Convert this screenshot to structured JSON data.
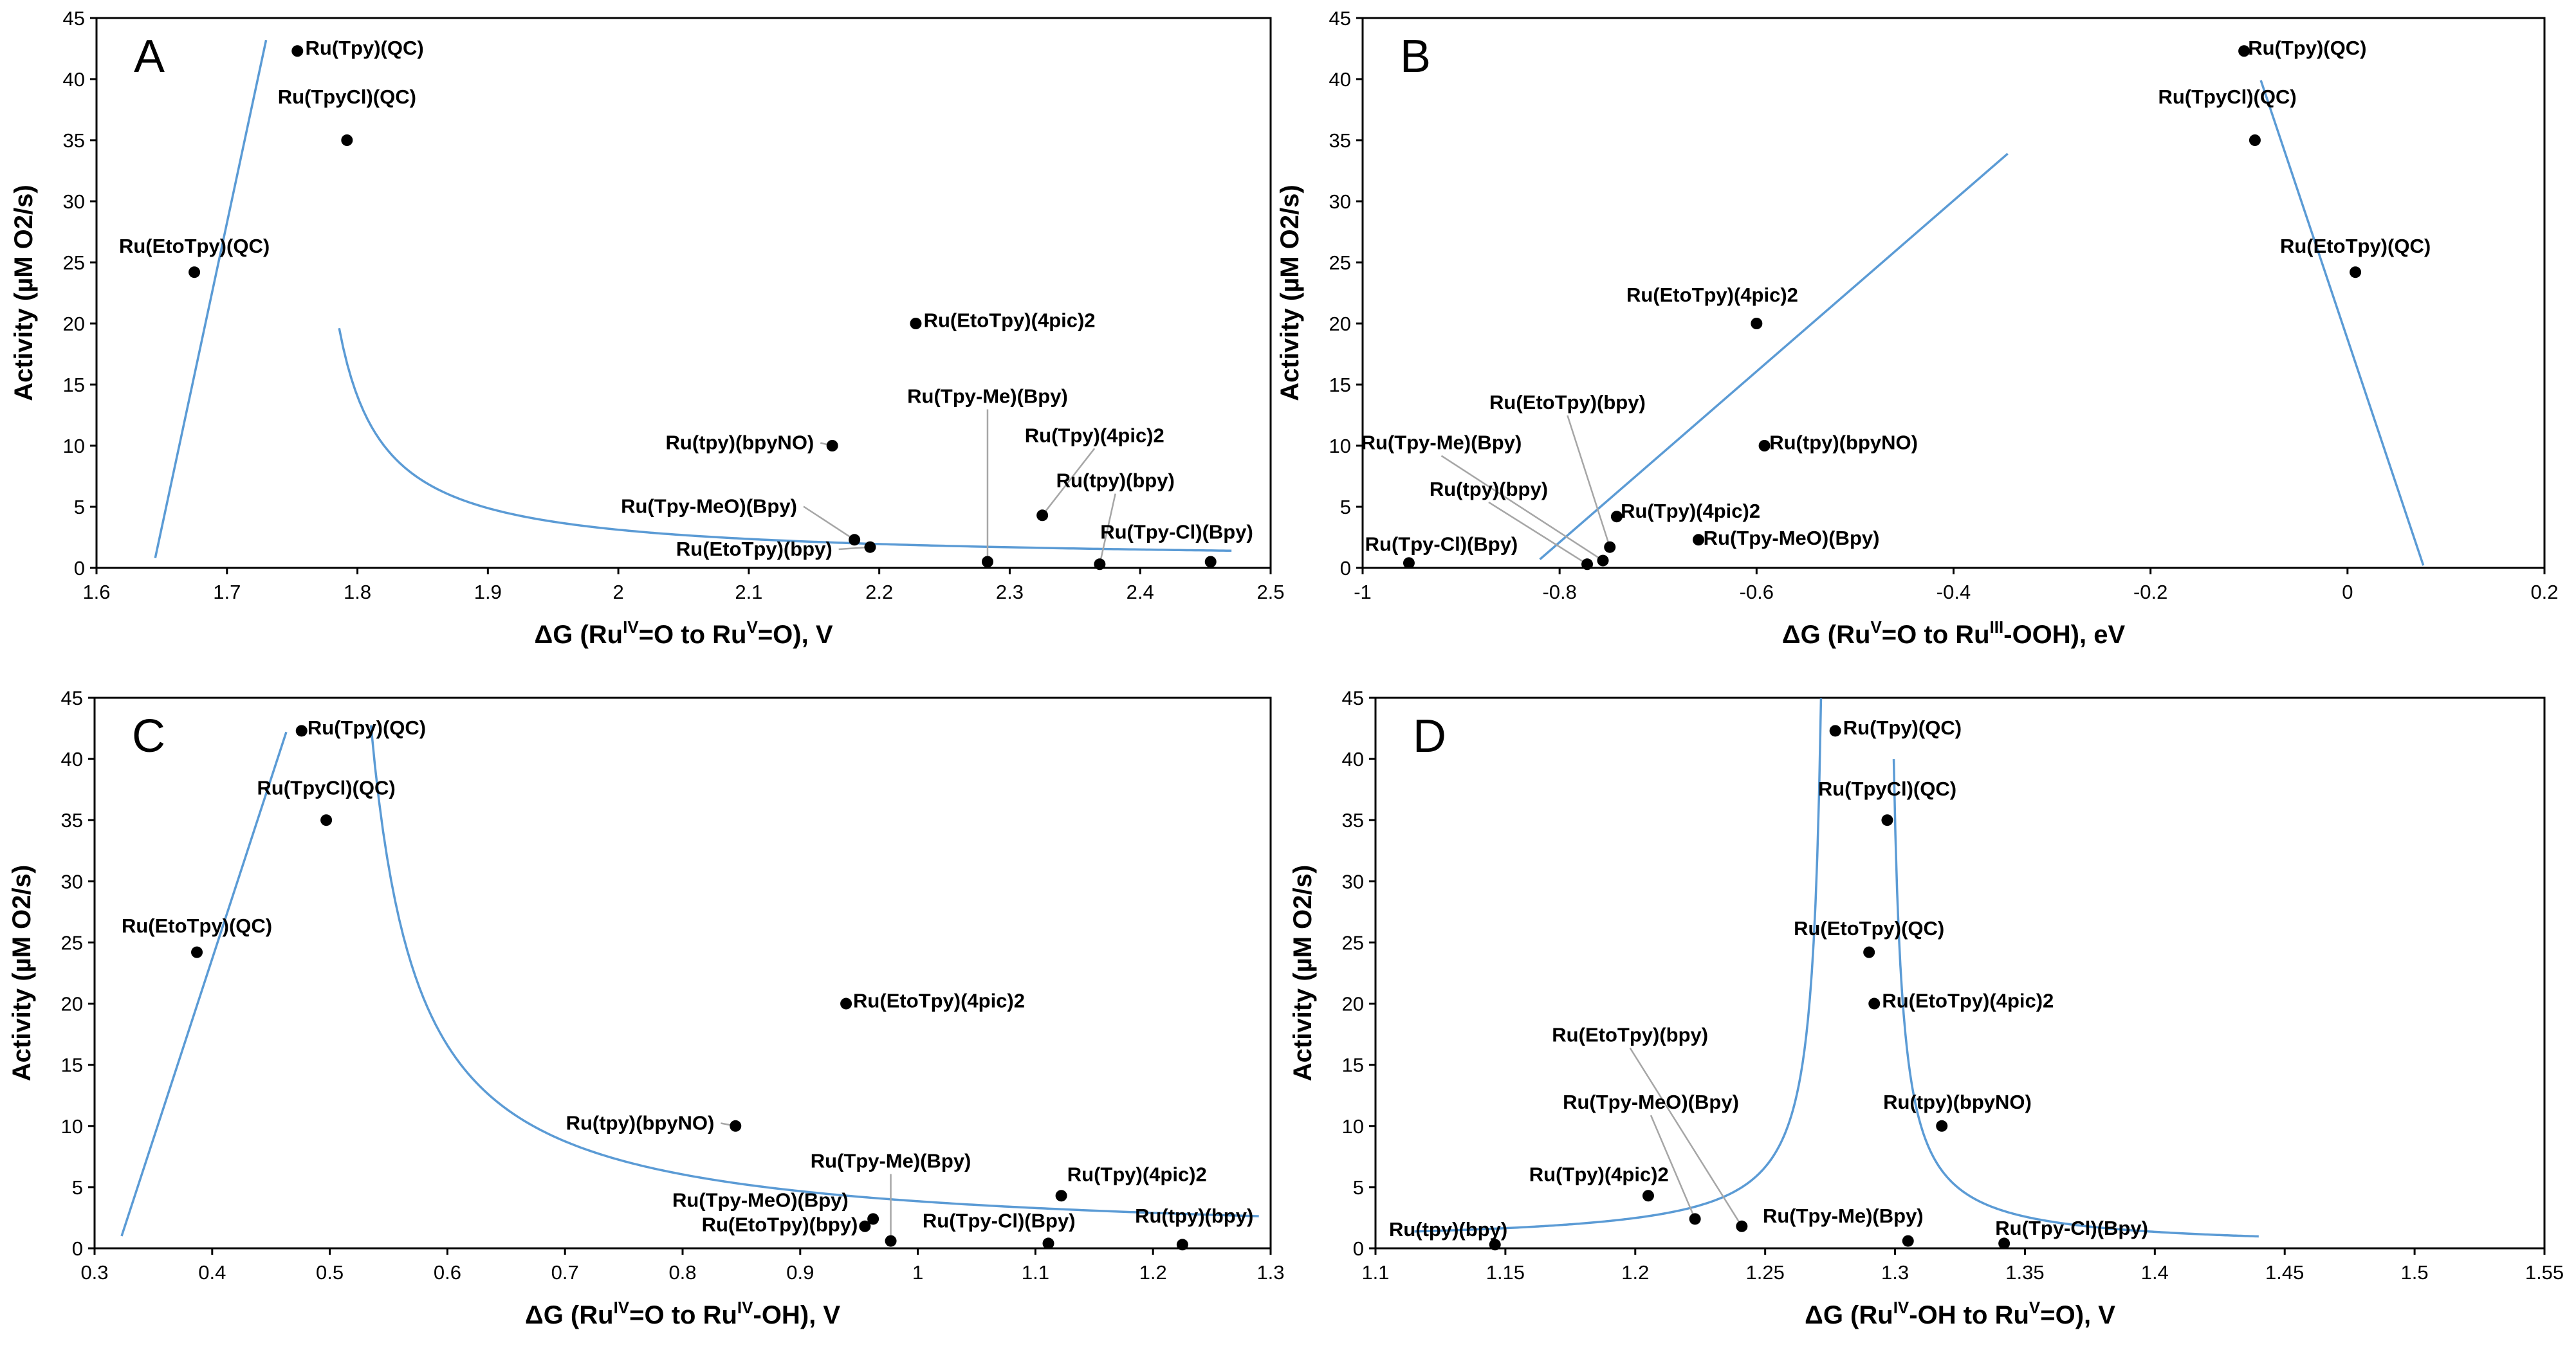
{
  "chart_data": [
    {
      "panel": "A",
      "type": "scatter",
      "title": "A",
      "xlabel": {
        "prefix": "ΔG (Ru",
        "sup1": "IV",
        "mid": "=O to Ru",
        "sup2": "V",
        "suffix": "=O), V"
      },
      "ylabel": "Activity (µM O2/s)",
      "xlim": [
        1.6,
        2.5
      ],
      "ylim": [
        0,
        45
      ],
      "xticks": [
        {
          "value": 1.6,
          "label": "1.6"
        },
        {
          "value": 1.7,
          "label": "1.7"
        },
        {
          "value": 1.8,
          "label": "1.8"
        },
        {
          "value": 1.9,
          "label": "1.9"
        },
        {
          "value": 2.0,
          "label": "2"
        },
        {
          "value": 2.1,
          "label": "2.1"
        },
        {
          "value": 2.2,
          "label": "2.2"
        },
        {
          "value": 2.3,
          "label": "2.3"
        },
        {
          "value": 2.4,
          "label": "2.4"
        },
        {
          "value": 2.5,
          "label": "2.5"
        }
      ],
      "yticks": [
        {
          "value": 0,
          "label": "0"
        },
        {
          "value": 5,
          "label": "5"
        },
        {
          "value": 10,
          "label": "10"
        },
        {
          "value": 15,
          "label": "15"
        },
        {
          "value": 20,
          "label": "20"
        },
        {
          "value": 25,
          "label": "25"
        },
        {
          "value": 30,
          "label": "30"
        },
        {
          "value": 35,
          "label": "35"
        },
        {
          "value": 40,
          "label": "40"
        },
        {
          "value": 45,
          "label": "45"
        }
      ],
      "points": [
        {
          "name": "Ru(Tpy)(QC)",
          "x": 1.754,
          "y": 42.3,
          "lx": 1.76,
          "ly": 42.0,
          "anchor": "start"
        },
        {
          "name": "Ru(TpyCl)(QC)",
          "x": 1.792,
          "y": 35.0,
          "lx": 1.792,
          "ly": 38.0,
          "anchor": "middle"
        },
        {
          "name": "Ru(EtoTpy)(QC)",
          "x": 1.675,
          "y": 24.2,
          "lx": 1.675,
          "ly": 25.8,
          "anchor": "middle"
        },
        {
          "name": "Ru(EtoTpy)(4pic)2",
          "x": 2.228,
          "y": 20.0,
          "lx": 2.234,
          "ly": 19.7,
          "anchor": "start"
        },
        {
          "name": "Ru(tpy)(bpyNO)",
          "x": 2.164,
          "y": 10.0,
          "lx": 2.15,
          "ly": 9.7,
          "anchor": "end",
          "leader": true
        },
        {
          "name": "Ru(Tpy-MeO)(Bpy)",
          "x": 2.181,
          "y": 2.3,
          "lx": 2.137,
          "ly": 4.5,
          "anchor": "end",
          "leader": true
        },
        {
          "name": "Ru(EtoTpy)(bpy)",
          "x": 2.193,
          "y": 1.7,
          "lx": 2.164,
          "ly": 1.0,
          "anchor": "end",
          "leader": true
        },
        {
          "name": "Ru(Tpy-Me)(Bpy)",
          "x": 2.283,
          "y": 0.5,
          "lx": 2.283,
          "ly": 13.5,
          "anchor": "middle",
          "leader": true
        },
        {
          "name": "Ru(Tpy)(4pic)2",
          "x": 2.325,
          "y": 4.3,
          "lx": 2.365,
          "ly": 10.3,
          "anchor": "middle",
          "leader": true
        },
        {
          "name": "Ru(tpy)(bpy)",
          "x": 2.369,
          "y": 0.3,
          "lx": 2.381,
          "ly": 6.6,
          "anchor": "middle",
          "leader": true
        },
        {
          "name": "Ru(Tpy-Cl)(Bpy)",
          "x": 2.454,
          "y": 0.5,
          "lx": 2.428,
          "ly": 2.4,
          "anchor": "middle"
        }
      ],
      "curves": [
        {
          "kind": "line",
          "pts": [
            [
              1.645,
              0.8
            ],
            [
              1.73,
              43.2
            ]
          ]
        },
        {
          "kind": "hyperbola",
          "xstart": 1.786,
          "xend": 2.47,
          "x0": 1.752,
          "a": 0.65,
          "c": 0.5
        }
      ]
    },
    {
      "panel": "B",
      "type": "scatter",
      "title": "B",
      "xlabel": {
        "prefix": "ΔG (Ru",
        "sup1": "V",
        "mid": "=O to Ru",
        "sup2": "III",
        "suffix": "-OOH), eV"
      },
      "ylabel": "Activity (µM O2/s)",
      "xlim": [
        -1,
        0.2
      ],
      "ylim": [
        0,
        45
      ],
      "xticks": [
        {
          "value": -1,
          "label": "-1"
        },
        {
          "value": -0.8,
          "label": "-0.8"
        },
        {
          "value": -0.6,
          "label": "-0.6"
        },
        {
          "value": -0.4,
          "label": "-0.4"
        },
        {
          "value": -0.2,
          "label": "-0.2"
        },
        {
          "value": 0,
          "label": "0"
        },
        {
          "value": 0.2,
          "label": "0.2"
        }
      ],
      "yticks": [
        {
          "value": 0,
          "label": "0"
        },
        {
          "value": 5,
          "label": "5"
        },
        {
          "value": 10,
          "label": "10"
        },
        {
          "value": 15,
          "label": "15"
        },
        {
          "value": 20,
          "label": "20"
        },
        {
          "value": 25,
          "label": "25"
        },
        {
          "value": 30,
          "label": "30"
        },
        {
          "value": 35,
          "label": "35"
        },
        {
          "value": 40,
          "label": "40"
        },
        {
          "value": 45,
          "label": "45"
        }
      ],
      "points": [
        {
          "name": "Ru(Tpy)(QC)",
          "x": -0.105,
          "y": 42.3,
          "lx": -0.101,
          "ly": 42.0,
          "anchor": "start"
        },
        {
          "name": "Ru(TpyCl)(QC)",
          "x": -0.094,
          "y": 35.0,
          "lx": -0.122,
          "ly": 38.0,
          "anchor": "middle"
        },
        {
          "name": "Ru(EtoTpy)(QC)",
          "x": 0.008,
          "y": 24.2,
          "lx": 0.008,
          "ly": 25.8,
          "anchor": "middle"
        },
        {
          "name": "Ru(EtoTpy)(4pic)2",
          "x": -0.6,
          "y": 20.0,
          "lx": -0.645,
          "ly": 21.8,
          "anchor": "middle"
        },
        {
          "name": "Ru(tpy)(bpyNO)",
          "x": -0.592,
          "y": 10.0,
          "lx": -0.587,
          "ly": 9.7,
          "anchor": "start"
        },
        {
          "name": "Ru(Tpy)(4pic)2",
          "x": -0.742,
          "y": 4.2,
          "lx": -0.738,
          "ly": 4.1,
          "anchor": "start"
        },
        {
          "name": "Ru(Tpy-MeO)(Bpy)",
          "x": -0.659,
          "y": 2.3,
          "lx": -0.654,
          "ly": 1.9,
          "anchor": "start"
        },
        {
          "name": "Ru(EtoTpy)(bpy)",
          "x": -0.749,
          "y": 1.7,
          "lx": -0.792,
          "ly": 13.0,
          "anchor": "middle",
          "leader": true
        },
        {
          "name": "Ru(Tpy-Me)(Bpy)",
          "x": -0.756,
          "y": 0.6,
          "lx": -0.92,
          "ly": 9.7,
          "anchor": "middle",
          "leader": true
        },
        {
          "name": "Ru(tpy)(bpy)",
          "x": -0.772,
          "y": 0.3,
          "lx": -0.872,
          "ly": 5.9,
          "anchor": "middle",
          "leader": true
        },
        {
          "name": "Ru(Tpy-Cl)(Bpy)",
          "x": -0.953,
          "y": 0.4,
          "lx": -0.92,
          "ly": 1.4,
          "anchor": "middle"
        }
      ],
      "curves": [
        {
          "kind": "line",
          "pts": [
            [
              -0.82,
              0.7
            ],
            [
              -0.345,
              33.9
            ]
          ]
        },
        {
          "kind": "line",
          "pts": [
            [
              -0.088,
              39.9
            ],
            [
              0.077,
              0.2
            ]
          ]
        }
      ]
    },
    {
      "panel": "C",
      "type": "scatter",
      "title": "C",
      "xlabel": {
        "prefix": "ΔG (Ru",
        "sup1": "IV",
        "mid": "=O to Ru",
        "sup2": "IV",
        "suffix": "-OH), V"
      },
      "ylabel": "Activity (µM O2/s)",
      "xlim": [
        0.3,
        1.3
      ],
      "ylim": [
        0,
        45
      ],
      "xticks": [
        {
          "value": 0.3,
          "label": "0.3"
        },
        {
          "value": 0.4,
          "label": "0.4"
        },
        {
          "value": 0.5,
          "label": "0.5"
        },
        {
          "value": 0.6,
          "label": "0.6"
        },
        {
          "value": 0.7,
          "label": "0.7"
        },
        {
          "value": 0.8,
          "label": "0.8"
        },
        {
          "value": 0.9,
          "label": "0.9"
        },
        {
          "value": 1.0,
          "label": "1"
        },
        {
          "value": 1.1,
          "label": "1.1"
        },
        {
          "value": 1.2,
          "label": "1.2"
        },
        {
          "value": 1.3,
          "label": "1.3"
        }
      ],
      "yticks": [
        {
          "value": 0,
          "label": "0"
        },
        {
          "value": 5,
          "label": "5"
        },
        {
          "value": 10,
          "label": "10"
        },
        {
          "value": 15,
          "label": "15"
        },
        {
          "value": 20,
          "label": "20"
        },
        {
          "value": 25,
          "label": "25"
        },
        {
          "value": 30,
          "label": "30"
        },
        {
          "value": 35,
          "label": "35"
        },
        {
          "value": 40,
          "label": "40"
        },
        {
          "value": 45,
          "label": "45"
        }
      ],
      "points": [
        {
          "name": "Ru(Tpy)(QC)",
          "x": 0.476,
          "y": 42.3,
          "lx": 0.481,
          "ly": 42.0,
          "anchor": "start"
        },
        {
          "name": "Ru(TpyCl)(QC)",
          "x": 0.497,
          "y": 35.0,
          "lx": 0.497,
          "ly": 37.1,
          "anchor": "middle"
        },
        {
          "name": "Ru(EtoTpy)(QC)",
          "x": 0.387,
          "y": 24.2,
          "lx": 0.387,
          "ly": 25.8,
          "anchor": "middle"
        },
        {
          "name": "Ru(EtoTpy)(4pic)2",
          "x": 0.939,
          "y": 20.0,
          "lx": 0.945,
          "ly": 19.7,
          "anchor": "start"
        },
        {
          "name": "Ru(tpy)(bpyNO)",
          "x": 0.845,
          "y": 10.0,
          "lx": 0.827,
          "ly": 9.7,
          "anchor": "end",
          "leader": true
        },
        {
          "name": "Ru(Tpy-Me)(Bpy)",
          "x": 0.977,
          "y": 0.6,
          "lx": 0.977,
          "ly": 6.6,
          "anchor": "middle",
          "leader": true
        },
        {
          "name": "Ru(Tpy-MeO)(Bpy)",
          "x": 0.962,
          "y": 2.4,
          "lx": 0.941,
          "ly": 3.4,
          "anchor": "end"
        },
        {
          "name": "Ru(EtoTpy)(bpy)",
          "x": 0.955,
          "y": 1.8,
          "lx": 0.949,
          "ly": 1.4,
          "anchor": "end"
        },
        {
          "name": "Ru(Tpy)(4pic)2",
          "x": 1.122,
          "y": 4.3,
          "lx": 1.127,
          "ly": 5.5,
          "anchor": "start"
        },
        {
          "name": "Ru(Tpy-Cl)(Bpy)",
          "x": 1.111,
          "y": 0.4,
          "lx": 1.069,
          "ly": 1.7,
          "anchor": "middle"
        },
        {
          "name": "Ru(tpy)(bpy)",
          "x": 1.225,
          "y": 0.3,
          "lx": 1.235,
          "ly": 2.1,
          "anchor": "middle"
        }
      ],
      "curves": [
        {
          "kind": "line",
          "pts": [
            [
              0.323,
              1.0
            ],
            [
              0.463,
              42.2
            ]
          ]
        },
        {
          "kind": "hyperbola",
          "xstart": 0.535,
          "xend": 1.29,
          "x0": 0.495,
          "a": 1.69,
          "c": 0.5
        }
      ]
    },
    {
      "panel": "D",
      "type": "scatter",
      "title": "D",
      "xlabel": {
        "prefix": "ΔG (Ru",
        "sup1": "IV",
        "mid": "-OH to Ru",
        "sup2": "V",
        "suffix": "=O), V"
      },
      "ylabel": "Activity (µM O2/s)",
      "xlim": [
        1.1,
        1.55
      ],
      "ylim": [
        0,
        45
      ],
      "xticks": [
        {
          "value": 1.1,
          "label": "1.1"
        },
        {
          "value": 1.15,
          "label": "1.15"
        },
        {
          "value": 1.2,
          "label": "1.2"
        },
        {
          "value": 1.25,
          "label": "1.25"
        },
        {
          "value": 1.3,
          "label": "1.3"
        },
        {
          "value": 1.35,
          "label": "1.35"
        },
        {
          "value": 1.4,
          "label": "1.4"
        },
        {
          "value": 1.45,
          "label": "1.45"
        },
        {
          "value": 1.5,
          "label": "1.5"
        },
        {
          "value": 1.55,
          "label": "1.55"
        }
      ],
      "yticks": [
        {
          "value": 0,
          "label": "0"
        },
        {
          "value": 5,
          "label": "5"
        },
        {
          "value": 10,
          "label": "10"
        },
        {
          "value": 15,
          "label": "15"
        },
        {
          "value": 20,
          "label": "20"
        },
        {
          "value": 25,
          "label": "25"
        },
        {
          "value": 30,
          "label": "30"
        },
        {
          "value": 35,
          "label": "35"
        },
        {
          "value": 40,
          "label": "40"
        },
        {
          "value": 45,
          "label": "45"
        }
      ],
      "points": [
        {
          "name": "Ru(Tpy)(QC)",
          "x": 1.277,
          "y": 42.3,
          "lx": 1.28,
          "ly": 42.0,
          "anchor": "start"
        },
        {
          "name": "Ru(TpyCl)(QC)",
          "x": 1.297,
          "y": 35.0,
          "lx": 1.297,
          "ly": 37.0,
          "anchor": "middle"
        },
        {
          "name": "Ru(EtoTpy)(QC)",
          "x": 1.29,
          "y": 24.2,
          "lx": 1.29,
          "ly": 25.6,
          "anchor": "middle"
        },
        {
          "name": "Ru(EtoTpy)(4pic)2",
          "x": 1.292,
          "y": 20.0,
          "lx": 1.295,
          "ly": 19.7,
          "anchor": "start"
        },
        {
          "name": "Ru(tpy)(bpyNO)",
          "x": 1.318,
          "y": 10.0,
          "lx": 1.324,
          "ly": 11.4,
          "anchor": "middle"
        },
        {
          "name": "Ru(EtoTpy)(bpy)",
          "x": 1.241,
          "y": 1.8,
          "lx": 1.198,
          "ly": 16.9,
          "anchor": "middle",
          "leader": true
        },
        {
          "name": "Ru(Tpy-MeO)(Bpy)",
          "x": 1.223,
          "y": 2.4,
          "lx": 1.206,
          "ly": 11.4,
          "anchor": "middle",
          "leader": true
        },
        {
          "name": "Ru(Tpy)(4pic)2",
          "x": 1.205,
          "y": 4.3,
          "lx": 1.186,
          "ly": 5.5,
          "anchor": "middle"
        },
        {
          "name": "Ru(Tpy-Me)(Bpy)",
          "x": 1.305,
          "y": 0.6,
          "lx": 1.28,
          "ly": 2.1,
          "anchor": "middle"
        },
        {
          "name": "Ru(Tpy-Cl)(Bpy)",
          "x": 1.342,
          "y": 0.4,
          "lx": 1.368,
          "ly": 1.1,
          "anchor": "middle"
        },
        {
          "name": "Ru(tpy)(bpy)",
          "x": 1.146,
          "y": 0.3,
          "lx": 1.128,
          "ly": 1.0,
          "anchor": "middle"
        }
      ],
      "curves": [
        {
          "kind": "hyperbola",
          "xstart": 1.115,
          "xend": 1.2715,
          "x0": 1.275,
          "a": 0.156,
          "c": 0.4
        },
        {
          "kind": "hyperbola",
          "xstart": 1.2995,
          "xend": 1.44,
          "x0": 1.296,
          "a": 0.14,
          "c": 0.0
        }
      ]
    }
  ]
}
